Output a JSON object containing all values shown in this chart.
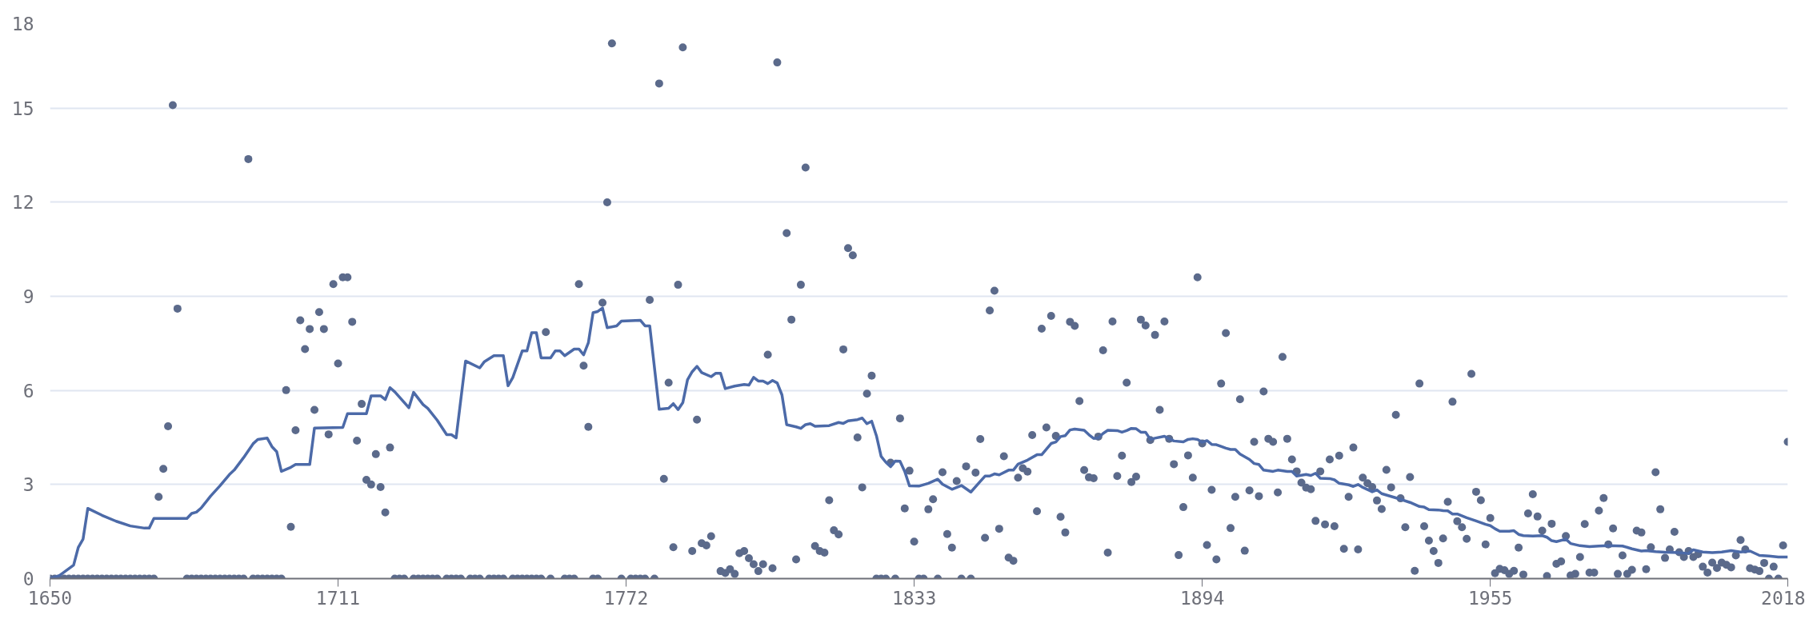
{
  "chart_data": {
    "type": "scatter",
    "xlim": [
      1650,
      2018
    ],
    "xticks": [
      1650,
      1711,
      1772,
      1833,
      1894,
      1955,
      2018
    ],
    "ylim": [
      0,
      17.7
    ],
    "yticks": [
      0,
      3,
      6,
      9,
      12,
      15,
      {
        "value": 17.7,
        "label": "18"
      }
    ],
    "grid": "y",
    "marker": "circle",
    "series": [
      {
        "color": "#5b6a8b",
        "x": [
          1650,
          1651,
          1652,
          1653,
          1654,
          1655,
          1656,
          1657,
          1658,
          1659,
          1660,
          1661,
          1662,
          1663,
          1664,
          1665,
          1666,
          1667,
          1668,
          1669,
          1670,
          1671,
          1672,
          1673,
          1674,
          1675,
          1676,
          1677,
          1679,
          1680,
          1681,
          1682,
          1683,
          1684,
          1685,
          1686,
          1687,
          1688,
          1689,
          1690,
          1691,
          1692,
          1693,
          1694,
          1695,
          1696,
          1697,
          1698,
          1699,
          1700,
          1701,
          1702,
          1703,
          1704,
          1705,
          1706,
          1707,
          1708,
          1709,
          1710,
          1711,
          1712,
          1713,
          1714,
          1715,
          1716,
          1717,
          1718,
          1719,
          1720,
          1721,
          1722,
          1723,
          1724,
          1725,
          1727,
          1728,
          1729,
          1730,
          1731,
          1732,
          1734,
          1735,
          1736,
          1737,
          1739,
          1740,
          1741,
          1743,
          1744,
          1745,
          1746,
          1748,
          1749,
          1750,
          1751,
          1752,
          1753,
          1754,
          1755,
          1756,
          1759,
          1760,
          1761,
          1762,
          1763,
          1764,
          1765,
          1766,
          1767,
          1768,
          1769,
          1771,
          1773,
          1774,
          1775,
          1776,
          1777,
          1778,
          1779,
          1780,
          1781,
          1782,
          1783,
          1784,
          1786,
          1787,
          1788,
          1789,
          1790,
          1792,
          1793,
          1794,
          1795,
          1796,
          1797,
          1798,
          1799,
          1800,
          1801,
          1802,
          1803,
          1804,
          1806,
          1807,
          1808,
          1809,
          1810,
          1812,
          1813,
          1814,
          1815,
          1816,
          1817,
          1818,
          1819,
          1820,
          1821,
          1822,
          1823,
          1824,
          1825,
          1826,
          1827,
          1828,
          1829,
          1830,
          1831,
          1832,
          1833,
          1834,
          1835,
          1836,
          1837,
          1838,
          1839,
          1840,
          1841,
          1842,
          1843,
          1844,
          1845,
          1846,
          1847,
          1848,
          1849,
          1850,
          1851,
          1852,
          1853,
          1854,
          1855,
          1856,
          1857,
          1858,
          1859,
          1860,
          1861,
          1862,
          1863,
          1864,
          1865,
          1866,
          1867,
          1868,
          1869,
          1870,
          1871,
          1872,
          1873,
          1874,
          1875,
          1876,
          1877,
          1878,
          1879,
          1880,
          1881,
          1882,
          1883,
          1884,
          1885,
          1886,
          1887,
          1888,
          1889,
          1890,
          1891,
          1892,
          1893,
          1894,
          1895,
          1896,
          1897,
          1898,
          1899,
          1900,
          1901,
          1902,
          1903,
          1904,
          1905,
          1906,
          1907,
          1908,
          1909,
          1910,
          1911,
          1912,
          1913,
          1914,
          1915,
          1916,
          1917,
          1918,
          1919,
          1920,
          1921,
          1922,
          1923,
          1924,
          1925,
          1926,
          1927,
          1928,
          1929,
          1930,
          1931,
          1932,
          1933,
          1934,
          1935,
          1936,
          1937,
          1938,
          1939,
          1940,
          1941,
          1942,
          1943,
          1944,
          1945,
          1946,
          1947,
          1948,
          1949,
          1950,
          1951,
          1952,
          1953,
          1954,
          1955,
          1956,
          1957,
          1958,
          1959,
          1960,
          1961,
          1962,
          1963,
          1964,
          1965,
          1966,
          1967,
          1968,
          1969,
          1970,
          1971,
          1972,
          1973,
          1974,
          1975,
          1976,
          1977,
          1978,
          1979,
          1980,
          1981,
          1982,
          1983,
          1984,
          1985,
          1986,
          1987,
          1988,
          1989,
          1990,
          1991,
          1992,
          1993,
          1994,
          1995,
          1996,
          1997,
          1998,
          1999,
          2000,
          2001,
          2002,
          2003,
          2004,
          2005,
          2006,
          2007,
          2008,
          2009,
          2010,
          2011,
          2012,
          2013,
          2014,
          2015,
          2016,
          2017,
          2018
        ],
        "values": [
          0,
          0,
          0,
          0,
          0,
          0,
          0,
          0,
          0,
          0,
          0,
          0,
          0,
          0,
          0,
          0,
          0,
          0,
          0,
          0,
          0,
          0,
          0,
          2.61,
          3.5,
          4.86,
          15.1,
          8.61,
          0,
          0,
          0,
          0,
          0,
          0,
          0,
          0,
          0,
          0,
          0,
          0,
          0,
          13.38,
          0,
          0,
          0,
          0,
          0,
          0,
          0,
          6.01,
          1.65,
          4.73,
          8.24,
          7.32,
          7.96,
          5.38,
          8.5,
          7.96,
          4.6,
          9.39,
          6.86,
          9.61,
          9.61,
          8.19,
          4.4,
          5.57,
          3.15,
          3.0,
          3.97,
          2.92,
          2.11,
          4.18,
          0,
          0,
          0,
          0,
          0,
          0,
          0,
          0,
          0,
          0,
          0,
          0,
          0,
          0,
          0,
          0,
          0,
          0,
          0,
          0,
          0,
          0,
          0,
          0,
          0,
          0,
          0,
          7.86,
          0,
          0,
          0,
          0,
          9.39,
          6.79,
          4.84,
          0,
          0,
          8.8,
          12.0,
          17.07,
          0,
          0,
          0,
          0,
          0,
          8.89,
          0,
          15.79,
          3.18,
          6.25,
          1.0,
          9.37,
          16.94,
          0.88,
          5.07,
          1.13,
          1.06,
          1.35,
          0.24,
          0.18,
          0.3,
          0.15,
          0.81,
          0.88,
          0.65,
          0.46,
          0.24,
          0.46,
          7.14,
          0.33,
          16.46,
          11.02,
          8.26,
          0.61,
          9.37,
          13.11,
          1.04,
          0.88,
          0.83,
          2.5,
          1.54,
          1.41,
          7.31,
          10.54,
          10.31,
          4.5,
          2.91,
          5.9,
          6.47,
          0,
          0,
          0,
          3.7,
          0,
          5.11,
          2.24,
          3.44,
          1.18,
          0,
          0,
          2.21,
          2.53,
          0,
          3.39,
          1.42,
          0.99,
          3.11,
          0,
          3.58,
          0,
          3.38,
          4.45,
          1.3,
          8.55,
          9.18,
          1.59,
          3.9,
          0.67,
          0.57,
          3.22,
          3.52,
          3.41,
          4.58,
          2.15,
          7.97,
          4.82,
          8.38,
          4.55,
          1.97,
          1.47,
          8.19,
          8.06,
          5.66,
          3.46,
          3.23,
          3.2,
          4.53,
          7.28,
          0.83,
          8.2,
          3.27,
          3.92,
          6.25,
          3.08,
          3.25,
          8.26,
          8.07,
          4.42,
          7.77,
          5.38,
          8.2,
          4.46,
          3.65,
          0.75,
          2.28,
          3.93,
          3.22,
          9.61,
          4.31,
          1.07,
          2.83,
          0.61,
          6.22,
          7.83,
          1.61,
          2.61,
          5.72,
          0.89,
          2.81,
          4.36,
          2.63,
          5.97,
          4.46,
          4.36,
          2.75,
          7.07,
          4.46,
          3.8,
          3.42,
          3.06,
          2.9,
          2.85,
          1.84,
          3.42,
          1.73,
          3.8,
          1.67,
          3.92,
          0.95,
          2.61,
          4.18,
          0.93,
          3.22,
          3.04,
          2.92,
          2.49,
          2.22,
          3.47,
          2.91,
          5.22,
          2.56,
          1.64,
          3.24,
          0.25,
          6.22,
          1.67,
          1.21,
          0.88,
          0.5,
          1.28,
          2.45,
          5.64,
          1.83,
          1.64,
          1.27,
          6.53,
          2.77,
          2.5,
          1.09,
          1.93,
          0.17,
          0.31,
          0.27,
          0.15,
          0.25,
          0.99,
          0.13,
          2.08,
          2.69,
          1.98,
          1.53,
          0.08,
          1.75,
          0.47,
          0.55,
          1.36,
          0.1,
          0.15,
          0.69,
          1.74,
          0.19,
          0.19,
          2.17,
          2.57,
          1.09,
          1.6,
          0.15,
          0.74,
          0.15,
          0.28,
          1.53,
          1.47,
          0.3,
          1.0,
          3.39,
          2.21,
          0.66,
          0.93,
          1.49,
          0.84,
          0.69,
          0.88,
          0.69,
          0.78,
          0.38,
          0.19,
          0.51,
          0.34,
          0.51,
          0.44,
          0.36,
          0.74,
          1.23,
          0.93,
          0.33,
          0.29,
          0.24,
          0.5,
          0,
          0.38,
          0,
          1.06,
          4.36
        ]
      },
      {
        "type": "line",
        "color": "#4c6aa8",
        "marker": "none",
        "x": [
          1650,
          1652,
          1655,
          1656,
          1657,
          1658,
          1661,
          1664,
          1667,
          1670,
          1671,
          1672,
          1679,
          1680,
          1681,
          1682,
          1684,
          1686,
          1688,
          1689,
          1691,
          1693,
          1694,
          1696,
          1697,
          1698,
          1699,
          1701,
          1702,
          1705,
          1706,
          1712,
          1713,
          1717,
          1718,
          1720,
          1721,
          1722,
          1723,
          1726,
          1727,
          1729,
          1730,
          1732,
          1734,
          1735,
          1736,
          1738,
          1741,
          1742,
          1744,
          1746,
          1747,
          1748,
          1750,
          1751,
          1752,
          1753,
          1754,
          1756,
          1757,
          1758,
          1759,
          1761,
          1762,
          1763,
          1764,
          1765,
          1766,
          1767,
          1768,
          1770,
          1771,
          1775,
          1776,
          1777,
          1779,
          1781,
          1782,
          1783,
          1784,
          1785,
          1786,
          1787,
          1788,
          1790,
          1791,
          1792,
          1793,
          1795,
          1797,
          1798,
          1799,
          1800,
          1801,
          1802,
          1803,
          1804,
          1805,
          1806,
          1808,
          1809,
          1810,
          1811,
          1812,
          1815,
          1817,
          1818,
          1819,
          1821,
          1822,
          1823,
          1824,
          1825,
          1826,
          1827,
          1828,
          1829,
          1830,
          1831,
          1832,
          1834,
          1836,
          1838,
          1839,
          1841,
          1843,
          1845,
          1847,
          1848,
          1849,
          1850,
          1851,
          1853,
          1854,
          1855,
          1857,
          1859,
          1860,
          1862,
          1863,
          1864,
          1865,
          1866,
          1867,
          1869,
          1870,
          1871,
          1872,
          1873,
          1874,
          1876,
          1877,
          1878,
          1879,
          1880,
          1881,
          1882,
          1883,
          1884,
          1886,
          1887,
          1888,
          1890,
          1891,
          1892,
          1893,
          1894,
          1895,
          1896,
          1897,
          1899,
          1900,
          1901,
          1902,
          1904,
          1905,
          1906,
          1907,
          1909,
          1910,
          1912,
          1913,
          1914,
          1916,
          1917,
          1918,
          1919,
          1921,
          1922,
          1923,
          1925,
          1926,
          1927,
          1928,
          1930,
          1931,
          1932,
          1934,
          1936,
          1938,
          1940,
          1941,
          1942,
          1944,
          1945,
          1946,
          1947,
          1948,
          1950,
          1952,
          1954,
          1955,
          1956,
          1957,
          1959,
          1960,
          1961,
          1962,
          1964,
          1966,
          1967,
          1968,
          1969,
          1971,
          1972,
          1974,
          1976,
          1978,
          1980,
          1983,
          1985,
          1987,
          1988,
          1990,
          1992,
          1995,
          1997,
          1998,
          2000,
          2002,
          2004,
          2006,
          2008,
          2010,
          2012,
          2014,
          2016,
          2018
        ],
        "values": [
          0,
          0.1,
          0.43,
          1.0,
          1.26,
          2.24,
          2.02,
          1.83,
          1.68,
          1.61,
          1.61,
          1.92,
          1.92,
          2.08,
          2.12,
          2.25,
          2.63,
          2.96,
          3.32,
          3.46,
          3.86,
          4.3,
          4.44,
          4.48,
          4.21,
          4.05,
          3.42,
          3.55,
          3.64,
          3.64,
          4.8,
          4.82,
          5.26,
          5.26,
          5.83,
          5.83,
          5.71,
          6.09,
          5.96,
          5.45,
          5.94,
          5.55,
          5.43,
          5.05,
          4.59,
          4.59,
          4.49,
          6.94,
          6.72,
          6.92,
          7.11,
          7.11,
          6.15,
          6.41,
          7.26,
          7.26,
          7.84,
          7.84,
          7.04,
          7.04,
          7.26,
          7.26,
          7.11,
          7.32,
          7.32,
          7.14,
          7.52,
          8.48,
          8.52,
          8.63,
          8.0,
          8.06,
          8.21,
          8.24,
          8.06,
          8.06,
          5.4,
          5.43,
          5.58,
          5.39,
          5.61,
          6.34,
          6.6,
          6.77,
          6.57,
          6.44,
          6.55,
          6.55,
          6.06,
          6.14,
          6.19,
          6.17,
          6.42,
          6.3,
          6.3,
          6.22,
          6.32,
          6.24,
          5.86,
          4.91,
          4.84,
          4.79,
          4.91,
          4.94,
          4.86,
          4.88,
          4.98,
          4.95,
          5.03,
          5.07,
          5.12,
          4.94,
          5.02,
          4.56,
          3.9,
          3.71,
          3.57,
          3.75,
          3.74,
          3.42,
          2.96,
          2.95,
          3.04,
          3.17,
          3.01,
          2.85,
          2.97,
          2.76,
          3.1,
          3.27,
          3.27,
          3.34,
          3.31,
          3.46,
          3.46,
          3.65,
          3.78,
          3.95,
          3.95,
          4.31,
          4.36,
          4.53,
          4.56,
          4.74,
          4.77,
          4.73,
          4.59,
          4.47,
          4.49,
          4.63,
          4.73,
          4.72,
          4.67,
          4.72,
          4.79,
          4.78,
          4.67,
          4.67,
          4.44,
          4.48,
          4.54,
          4.46,
          4.39,
          4.36,
          4.44,
          4.46,
          4.44,
          4.35,
          4.4,
          4.28,
          4.27,
          4.16,
          4.12,
          4.12,
          3.97,
          3.8,
          3.67,
          3.64,
          3.46,
          3.42,
          3.46,
          3.42,
          3.42,
          3.27,
          3.32,
          3.29,
          3.36,
          3.2,
          3.19,
          3.15,
          3.04,
          2.99,
          2.94,
          3.0,
          2.91,
          2.77,
          2.83,
          2.71,
          2.62,
          2.53,
          2.43,
          2.3,
          2.28,
          2.2,
          2.19,
          2.17,
          2.16,
          2.06,
          2.06,
          1.94,
          1.84,
          1.73,
          1.69,
          1.59,
          1.51,
          1.51,
          1.53,
          1.41,
          1.37,
          1.36,
          1.37,
          1.32,
          1.21,
          1.18,
          1.26,
          1.12,
          1.05,
          1.02,
          1.04,
          1.05,
          1.04,
          0.95,
          0.88,
          0.89,
          0.86,
          0.84,
          0.83,
          0.8,
          0.92,
          0.85,
          0.83,
          0.85,
          0.89,
          0.85,
          0.88,
          0.74,
          0.72,
          0.69,
          0.69
        ]
      }
    ]
  }
}
